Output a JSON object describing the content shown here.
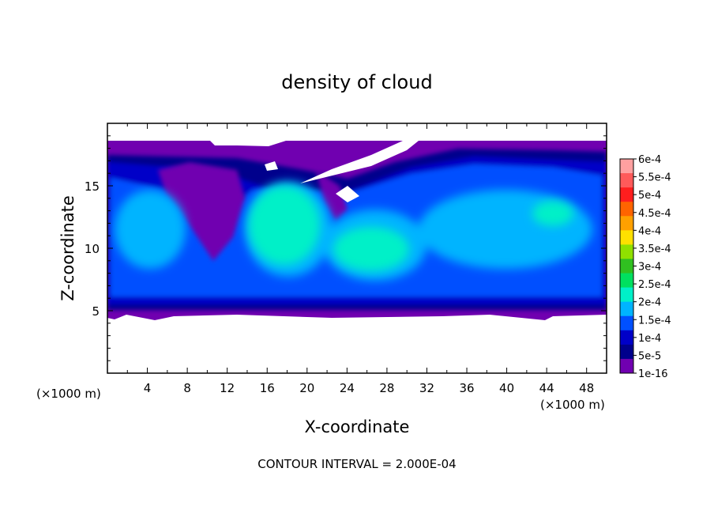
{
  "chart_data": {
    "type": "heatmap",
    "title": "density of cloud",
    "xlabel": "X-coordinate",
    "ylabel": "Z-coordinate",
    "x_unit": "(×1000 m)",
    "y_unit": "(×1000 m)",
    "xlim": [
      0,
      50
    ],
    "ylim": [
      0,
      20
    ],
    "x_ticks": [
      4,
      8,
      12,
      16,
      20,
      24,
      28,
      32,
      36,
      40,
      44,
      48
    ],
    "y_ticks": [
      5,
      10,
      15
    ],
    "contour_interval": "CONTOUR INTERVAL = 2.000E-04",
    "colorbar": {
      "labels": [
        "6e-4",
        "5.5e-4",
        "5e-4",
        "4.5e-4",
        "4e-4",
        "3.5e-4",
        "3e-4",
        "2.5e-4",
        "2e-4",
        "1.5e-4",
        "1e-4",
        "5e-5",
        "1e-16"
      ],
      "colors": [
        "#ffa0a0",
        "#ff5a5a",
        "#ff1e1e",
        "#ff6400",
        "#ffa000",
        "#ffe000",
        "#90e000",
        "#30c020",
        "#00e060",
        "#00f0c8",
        "#00b4ff",
        "#0050ff",
        "#0000c8",
        "#00008c",
        "#7000b0"
      ]
    },
    "cloud_extent": {
      "base_z": 5,
      "top_z": 18.5
    }
  }
}
